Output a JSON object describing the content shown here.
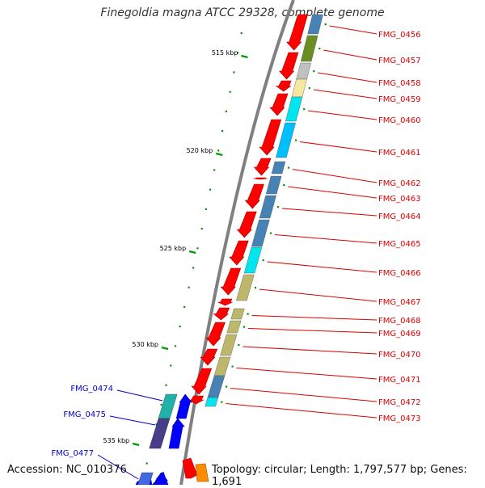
{
  "title": "Finegoldia magna ATCC 29328, complete genome",
  "accession": "Accession: NC_010376",
  "topology": "Topology: circular; Length: 1,797,577 bp; Genes: 1,691",
  "colors": {
    "label_plus": "#dd0000",
    "label_minus": "#0000cc",
    "cds_plus": "#ff0000",
    "cds_minus": "#0000ff",
    "backbone": "#808080",
    "tick": "#009900"
  },
  "scale_labels": [
    "515 kbp",
    "520 kbp",
    "525 kbp",
    "530 kbp",
    "535 kbp"
  ],
  "genes_right": [
    {
      "name": "FMG_0456",
      "cog_color": "#4682b4"
    },
    {
      "name": "FMG_0457",
      "cog_color": "#6b8e23"
    },
    {
      "name": "FMG_0458",
      "cog_color": "#c0c0c0"
    },
    {
      "name": "FMG_0459",
      "cog_color": "#f5e6a0"
    },
    {
      "name": "FMG_0460",
      "cog_color": "#00e5ee"
    },
    {
      "name": "FMG_0461",
      "cog_color": "#00bfff"
    },
    {
      "name": "FMG_0462",
      "cog_color": "#4682b4"
    },
    {
      "name": "FMG_0463",
      "cog_color": "#4682b4"
    },
    {
      "name": "FMG_0464",
      "cog_color": "#4682b4"
    },
    {
      "name": "FMG_0465",
      "cog_color": "#4682b4"
    },
    {
      "name": "FMG_0466",
      "cog_color": "#00e5ee"
    },
    {
      "name": "FMG_0467",
      "cog_color": "#bdb76b"
    },
    {
      "name": "FMG_0468",
      "cog_color": "#bdb76b"
    },
    {
      "name": "FMG_0469",
      "cog_color": "#bdb76b"
    },
    {
      "name": "FMG_0470",
      "cog_color": "#bdb76b"
    },
    {
      "name": "FMG_0471",
      "cog_color": "#bdb76b"
    },
    {
      "name": "FMG_0472",
      "cog_color": "#4682b4"
    },
    {
      "name": "FMG_0473",
      "cog_color": "#00e5ee"
    }
  ],
  "genes_left": [
    {
      "name": "FMG_0474",
      "cog_color": "#20b2aa"
    },
    {
      "name": "FMG_0475",
      "cog_color": "#483d8b"
    },
    {
      "name": "FMG_0477",
      "cog_color": "#4169e1"
    }
  ]
}
